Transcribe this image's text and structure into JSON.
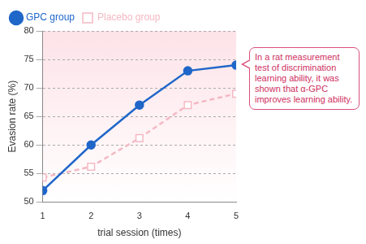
{
  "chart_data": {
    "type": "line",
    "categories": [
      1,
      2,
      3,
      4,
      5
    ],
    "x_label": "trial session (times)",
    "y_label": "Evasion rate (%)",
    "annotation": "In a rat measurement test of discrimination learning ability, it was shown that α-GPC improves learning ability.",
    "series": [
      {
        "name": "GPC group",
        "color": "#1f66c9",
        "marker": "circle",
        "line_style": "solid",
        "values": [
          52,
          60,
          67,
          73,
          74
        ]
      },
      {
        "name": "Placebo group",
        "color": "#f4b9c3",
        "marker": "square",
        "line_style": "dashed",
        "values": [
          54.3,
          56.2,
          61.2,
          67,
          69
        ]
      }
    ],
    "ylim": [
      50,
      80
    ],
    "yticks": [
      50,
      55,
      60,
      65,
      70,
      75,
      80
    ],
    "grid": true,
    "legend": "upper left"
  }
}
